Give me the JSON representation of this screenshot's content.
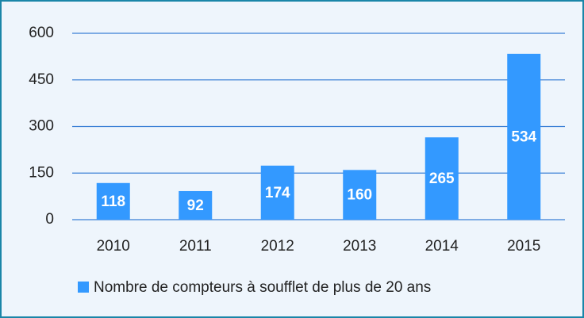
{
  "chart_data": {
    "type": "bar",
    "categories": [
      "2010",
      "2011",
      "2012",
      "2013",
      "2014",
      "2015"
    ],
    "series": [
      {
        "name": "Nombre de compteurs à soufflet de plus de 20 ans",
        "color": "#3399ff",
        "values": [
          118,
          92,
          174,
          160,
          265,
          534
        ]
      }
    ],
    "ylim": [
      0,
      600
    ],
    "yticks": [
      0,
      150,
      300,
      450,
      600
    ],
    "grid": true,
    "legend": "bottom"
  }
}
